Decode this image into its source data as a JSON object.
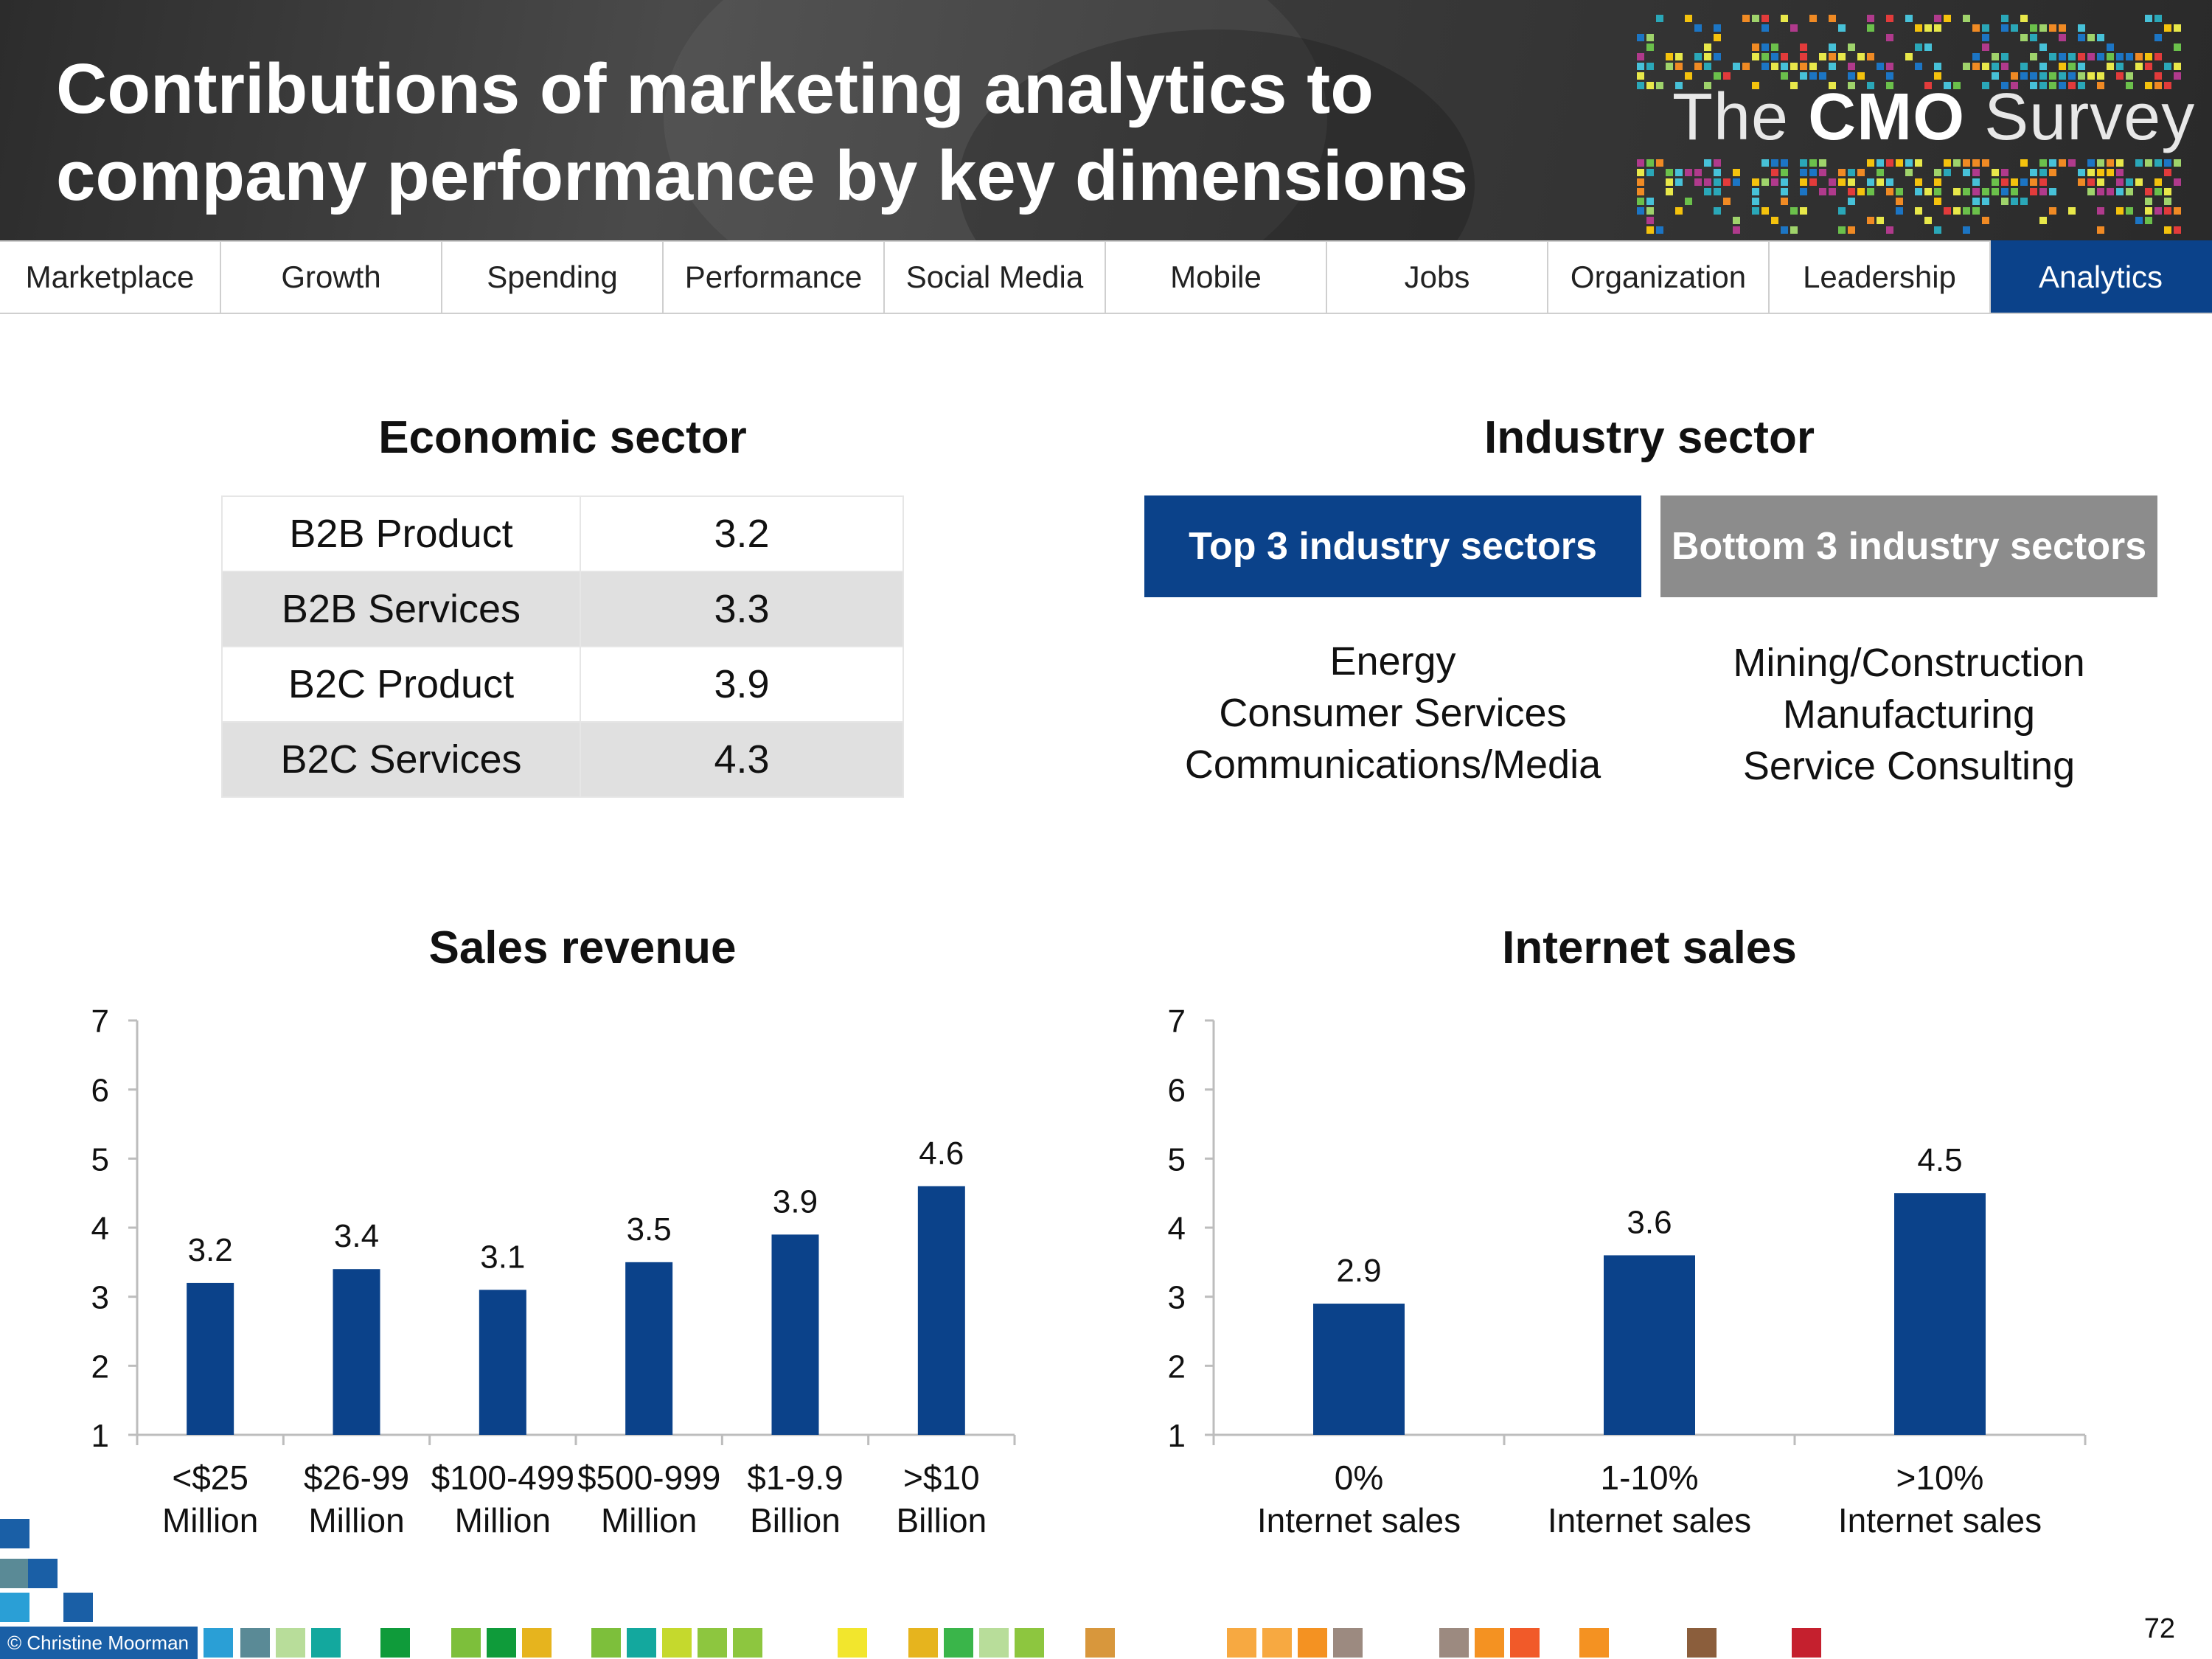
{
  "header": {
    "title_line1": "Contributions of marketing analytics to",
    "title_line2": "company performance by key dimensions",
    "logo_the": "The",
    "logo_cmo": "CMO",
    "logo_survey": "Survey"
  },
  "nav": {
    "tabs": [
      "Marketplace",
      "Growth",
      "Spending",
      "Performance",
      "Social Media",
      "Mobile",
      "Jobs",
      "Organization",
      "Leadership",
      "Analytics"
    ],
    "active": "Analytics"
  },
  "economic_sector": {
    "title": "Economic sector",
    "rows": [
      {
        "label": "B2B Product",
        "value": "3.2"
      },
      {
        "label": "B2B Services",
        "value": "3.3"
      },
      {
        "label": "B2C Product",
        "value": "3.9"
      },
      {
        "label": "B2C Services",
        "value": "4.3"
      }
    ]
  },
  "industry_sector": {
    "title": "Industry sector",
    "top_label": "Top 3 industry sectors",
    "bottom_label": "Bottom 3 industry sectors",
    "top": [
      "Energy",
      "Consumer Services",
      "Communications/Media"
    ],
    "bottom": [
      "Mining/Construction",
      "Manufacturing",
      "Service Consulting"
    ]
  },
  "chart_data": [
    {
      "type": "bar",
      "title": "Sales revenue",
      "categories": [
        [
          "<$25",
          "Million"
        ],
        [
          "$26-99",
          "Million"
        ],
        [
          "$100-499",
          "Million"
        ],
        [
          "$500-999",
          "Million"
        ],
        [
          "$1-9.9",
          "Billion"
        ],
        [
          ">$10",
          "Billion"
        ]
      ],
      "values": [
        3.2,
        3.4,
        3.1,
        3.5,
        3.9,
        4.6
      ],
      "ylim": [
        1,
        7
      ],
      "yticks": [
        1,
        2,
        3,
        4,
        5,
        6,
        7
      ],
      "color": "#0b428a"
    },
    {
      "type": "bar",
      "title": "Internet sales",
      "categories": [
        [
          "0%",
          "Internet sales"
        ],
        [
          "1-10%",
          "Internet sales"
        ],
        [
          ">10%",
          "Internet sales"
        ]
      ],
      "values": [
        2.9,
        3.6,
        4.5
      ],
      "ylim": [
        1,
        7
      ],
      "yticks": [
        1,
        2,
        3,
        4,
        5,
        6,
        7
      ],
      "color": "#0b428a"
    }
  ],
  "footer": {
    "copyright": "© Christine Moorman",
    "page_number": "72"
  },
  "colors": {
    "accent": "#0b428a",
    "gray_box": "#8c8c8c"
  }
}
